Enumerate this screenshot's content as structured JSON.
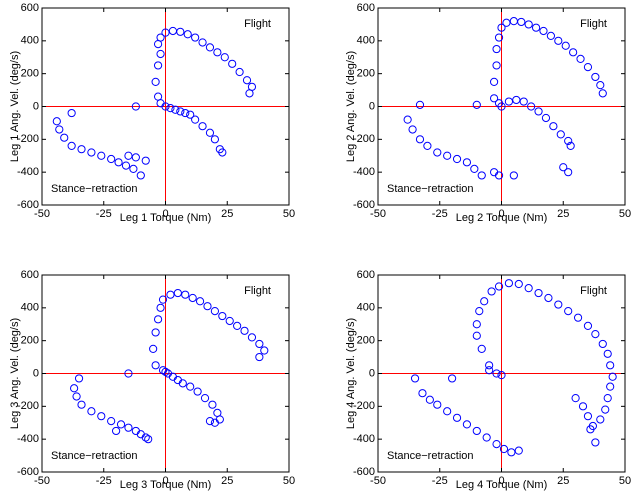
{
  "chart_data": [
    {
      "type": "scatter",
      "xlabel": "Leg 1 Torque (Nm)",
      "ylabel": "Leg 1 Ang. Vel. (deg/s)",
      "annotations": [
        "Flight",
        "Stance−retraction"
      ],
      "xlim": [
        -50,
        50
      ],
      "xticks": [
        -50,
        -25,
        0,
        25,
        50
      ],
      "ylim": [
        -600,
        600
      ],
      "yticks": [
        -600,
        -400,
        -200,
        0,
        200,
        400,
        600
      ],
      "axis_line_color": "#ff0000",
      "series": [
        {
          "color": "#0000ff",
          "x": [
            -3,
            -4,
            -3,
            -2,
            -3,
            -2,
            0,
            3,
            6,
            9,
            12,
            15,
            18,
            21,
            24,
            27,
            30,
            33,
            35,
            34,
            -2,
            0,
            2,
            4,
            6,
            8,
            10,
            12,
            15,
            18,
            20,
            22,
            23,
            -38,
            -12,
            -44,
            -43,
            -41,
            -38,
            -34,
            -30,
            -26,
            -22,
            -19,
            -16,
            -13,
            -10,
            -15,
            -12,
            -8
          ],
          "values": [
            60,
            150,
            250,
            320,
            380,
            420,
            450,
            460,
            455,
            440,
            420,
            390,
            360,
            330,
            300,
            260,
            210,
            160,
            120,
            80,
            20,
            0,
            -10,
            -20,
            -30,
            -40,
            -50,
            -80,
            -120,
            -160,
            -200,
            -260,
            -280,
            -40,
            0,
            -90,
            -140,
            -190,
            -240,
            -260,
            -280,
            -300,
            -320,
            -340,
            -360,
            -380,
            -420,
            -300,
            -310,
            -330
          ]
        }
      ]
    },
    {
      "type": "scatter",
      "xlabel": "Leg 2 Torque (Nm)",
      "ylabel": "Leg 2 Ang. Vel. (deg/s)",
      "annotations": [
        "Flight",
        "Stance−retraction"
      ],
      "xlim": [
        -50,
        50
      ],
      "xticks": [
        -50,
        -25,
        0,
        25,
        50
      ],
      "ylim": [
        -600,
        600
      ],
      "yticks": [
        -600,
        -400,
        -200,
        0,
        200,
        400,
        600
      ],
      "axis_line_color": "#ff0000",
      "series": [
        {
          "color": "#0000ff",
          "x": [
            -3,
            -3,
            -2,
            -2,
            -1,
            0,
            2,
            5,
            8,
            11,
            14,
            17,
            20,
            23,
            26,
            29,
            32,
            35,
            38,
            40,
            41,
            -1,
            0,
            3,
            6,
            9,
            12,
            15,
            18,
            21,
            24,
            27,
            28,
            -33,
            -10,
            -38,
            -36,
            -33,
            -30,
            -26,
            -22,
            -18,
            -14,
            -11,
            -8,
            -3,
            -1,
            5,
            25,
            27
          ],
          "values": [
            50,
            150,
            250,
            350,
            420,
            480,
            510,
            520,
            515,
            500,
            480,
            460,
            430,
            400,
            370,
            330,
            290,
            240,
            180,
            130,
            80,
            20,
            0,
            30,
            40,
            30,
            0,
            -30,
            -70,
            -120,
            -170,
            -210,
            -240,
            10,
            10,
            -80,
            -140,
            -200,
            -240,
            -280,
            -300,
            -320,
            -340,
            -380,
            -420,
            -400,
            -420,
            -420,
            -370,
            -400
          ]
        }
      ]
    },
    {
      "type": "scatter",
      "xlabel": "Leg 3 Torque (Nm)",
      "ylabel": "Leg 3 Ang. Vel. (deg/s)",
      "annotations": [
        "Flight",
        "Stance−retraction"
      ],
      "xlim": [
        -50,
        50
      ],
      "xticks": [
        -50,
        -25,
        0,
        25,
        50
      ],
      "ylim": [
        -600,
        600
      ],
      "yticks": [
        -600,
        -400,
        -200,
        0,
        200,
        400,
        600
      ],
      "axis_line_color": "#ff0000",
      "series": [
        {
          "color": "#0000ff",
          "x": [
            -4,
            -5,
            -4,
            -3,
            -2,
            -1,
            2,
            5,
            8,
            11,
            14,
            17,
            20,
            23,
            26,
            29,
            32,
            35,
            38,
            40,
            38,
            -1,
            1,
            3,
            5,
            7,
            10,
            13,
            16,
            19,
            21,
            22,
            -35,
            -15,
            -37,
            -36,
            -34,
            -30,
            -26,
            -22,
            -18,
            -15,
            -12,
            -10,
            -8,
            -7,
            -20,
            18,
            20,
            0
          ],
          "values": [
            50,
            150,
            250,
            330,
            400,
            450,
            480,
            490,
            480,
            460,
            440,
            410,
            380,
            350,
            320,
            290,
            260,
            220,
            180,
            140,
            100,
            20,
            0,
            -20,
            -40,
            -60,
            -80,
            -110,
            -150,
            -190,
            -240,
            -280,
            -30,
            0,
            -90,
            -140,
            -190,
            -230,
            -260,
            -290,
            -310,
            -330,
            -350,
            -370,
            -390,
            -400,
            -350,
            -290,
            -300,
            10
          ]
        }
      ]
    },
    {
      "type": "scatter",
      "xlabel": "Leg 4 Torque (Nm)",
      "ylabel": "Leg 4 Ang. Vel. (deg/s)",
      "annotations": [
        "Flight",
        "Stance−retraction"
      ],
      "xlim": [
        -50,
        50
      ],
      "xticks": [
        -50,
        -25,
        0,
        25,
        50
      ],
      "ylim": [
        -600,
        600
      ],
      "yticks": [
        -600,
        -400,
        -200,
        0,
        200,
        400,
        600
      ],
      "axis_line_color": "#ff0000",
      "series": [
        {
          "color": "#0000ff",
          "x": [
            -5,
            -8,
            -10,
            -10,
            -9,
            -7,
            -4,
            -1,
            3,
            7,
            11,
            15,
            19,
            23,
            27,
            31,
            35,
            38,
            41,
            43,
            44,
            45,
            44,
            43,
            42,
            40,
            36,
            -5,
            -2,
            0,
            30,
            33,
            35,
            37,
            38,
            -35,
            -20,
            -32,
            -29,
            -26,
            -22,
            -18,
            -14,
            -10,
            -6,
            -2,
            1,
            4,
            7
          ],
          "values": [
            50,
            150,
            230,
            300,
            380,
            440,
            500,
            530,
            550,
            545,
            520,
            490,
            460,
            420,
            380,
            340,
            290,
            240,
            180,
            120,
            50,
            -20,
            -80,
            -150,
            -220,
            -280,
            -340,
            20,
            0,
            -10,
            -150,
            -200,
            -260,
            -320,
            -420,
            -30,
            -30,
            -120,
            -160,
            -190,
            -230,
            -270,
            -310,
            -350,
            -390,
            -430,
            -460,
            -480,
            -470
          ]
        }
      ]
    }
  ]
}
